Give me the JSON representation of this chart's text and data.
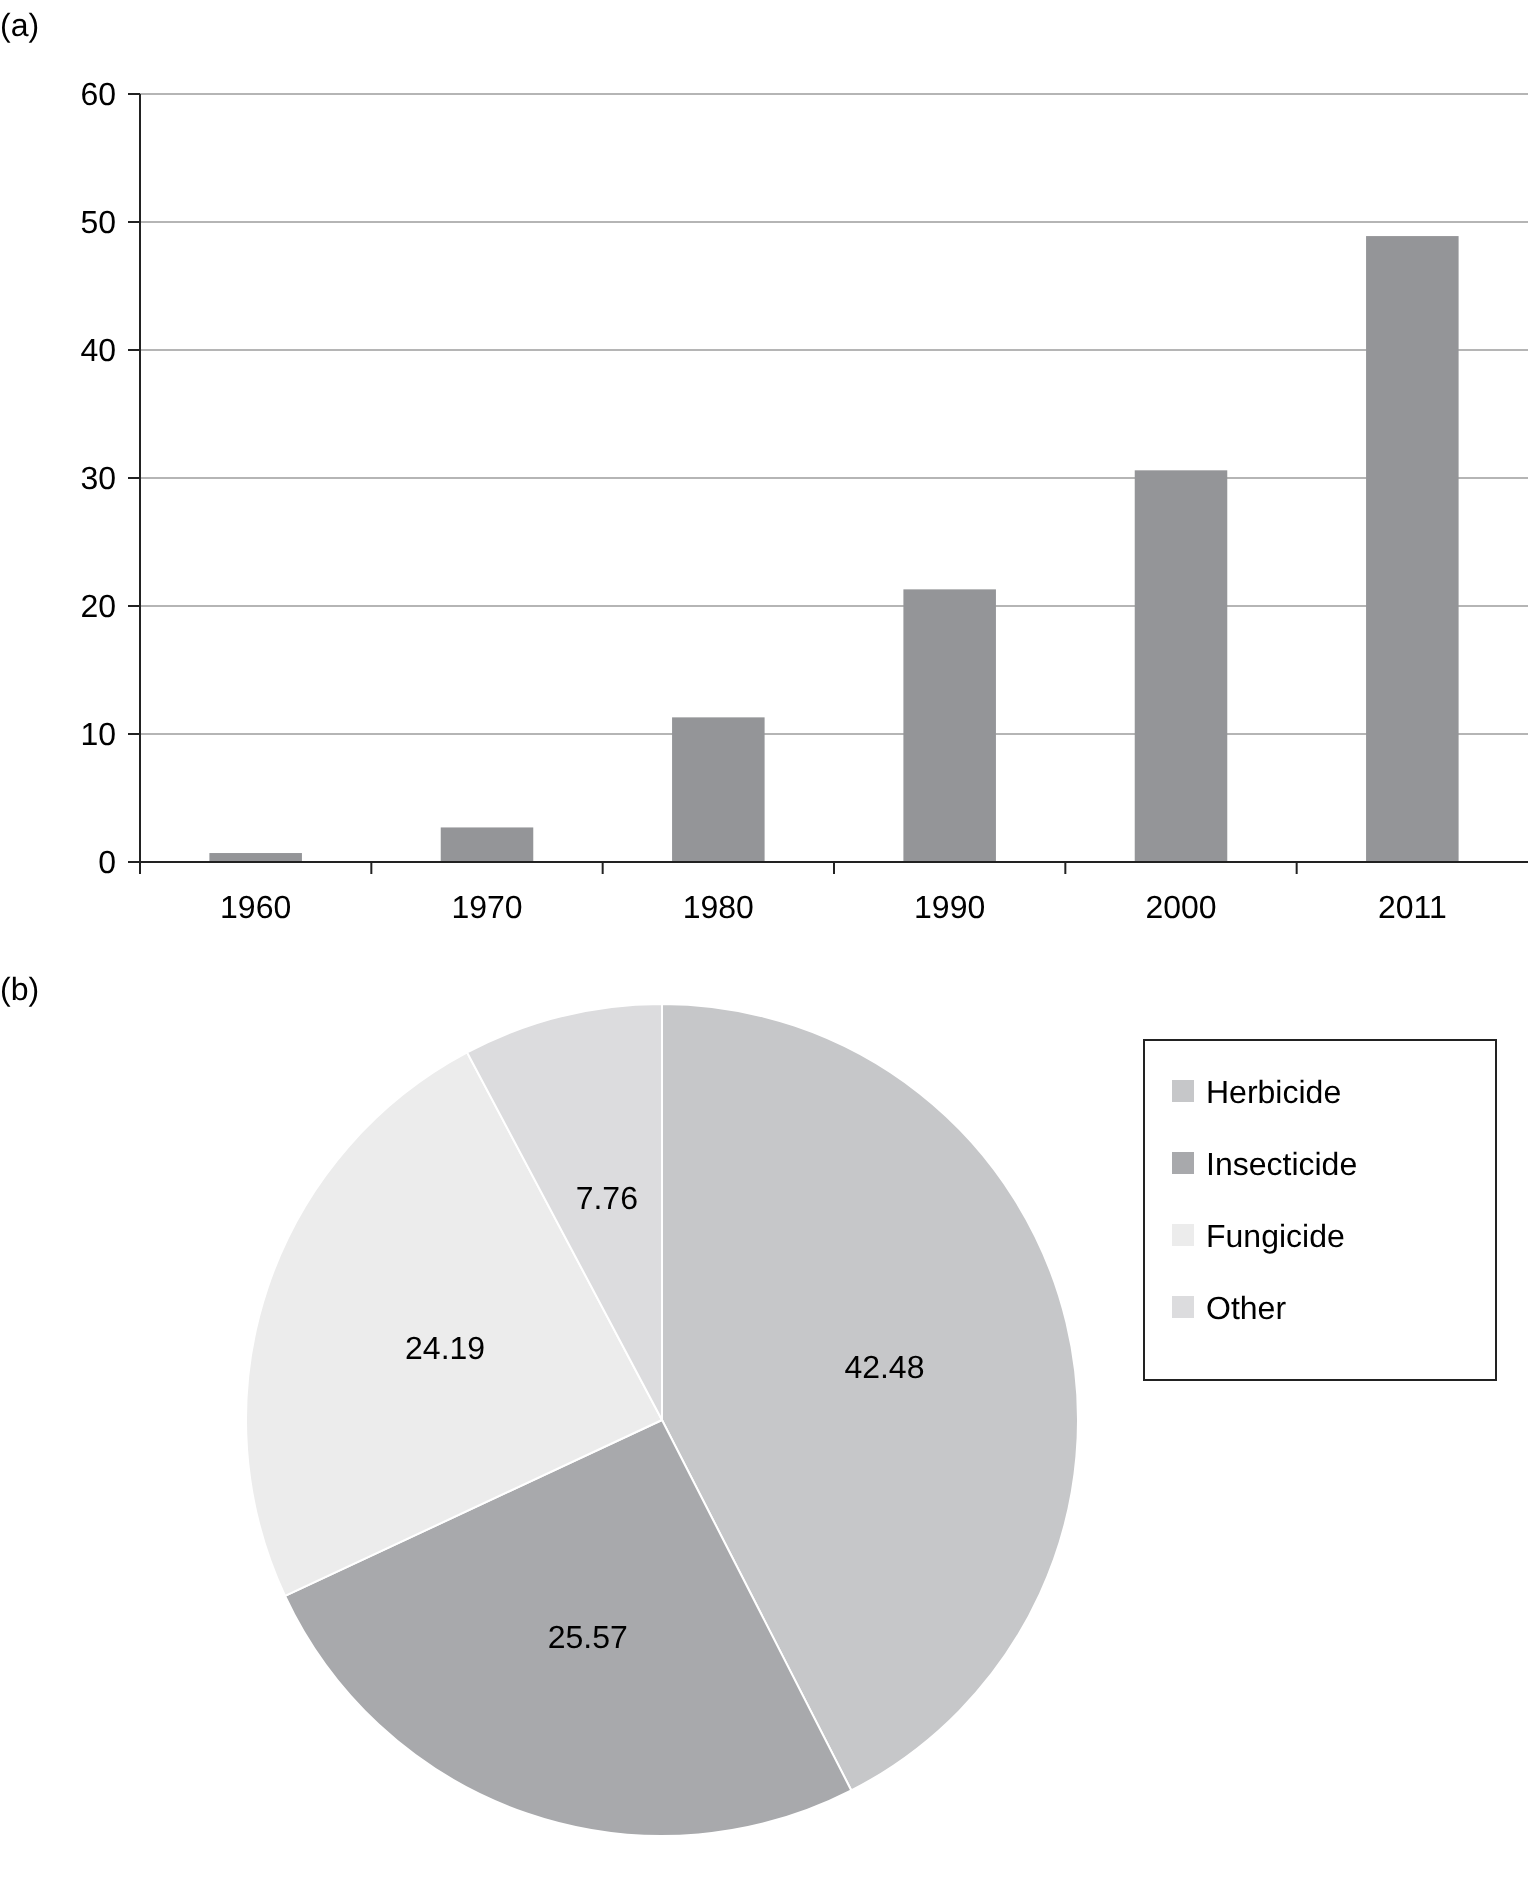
{
  "chart_data": [
    {
      "type": "bar",
      "title": "(a)",
      "categories": [
        "1960",
        "1970",
        "1980",
        "1990",
        "2000",
        "2011"
      ],
      "values": [
        0.7,
        2.7,
        11.3,
        21.3,
        30.6,
        48.9
      ],
      "color": "#949598",
      "ylim": [
        0,
        60
      ],
      "yticks": [
        0,
        10,
        20,
        30,
        40,
        50,
        60
      ],
      "grid": "y"
    },
    {
      "type": "pie",
      "title": "(b)",
      "categories": [
        "Herbicide",
        "Insecticide",
        "Fungicide",
        "Other"
      ],
      "values": [
        42.48,
        25.57,
        24.19,
        7.76
      ],
      "colors": [
        "#c6c7c9",
        "#a8a9ac",
        "#ececec",
        "#dcdcde"
      ],
      "data_labels": true,
      "legend": "right"
    }
  ]
}
